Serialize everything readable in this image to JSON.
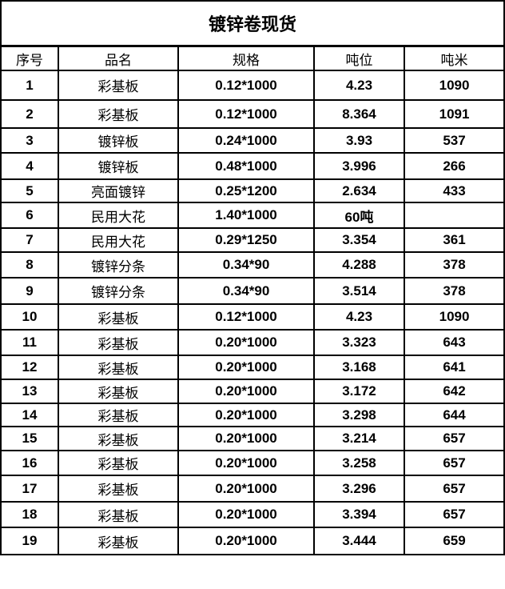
{
  "title": "镀锌卷现货",
  "headers": [
    "序号",
    "品名",
    "规格",
    "吨位",
    "吨米"
  ],
  "rows": [
    [
      "1",
      "彩基板",
      "0.12*1000",
      "4.23",
      "1090"
    ],
    [
      "2",
      "彩基板",
      "0.12*1000",
      "8.364",
      "1091"
    ],
    [
      "3",
      "镀锌板",
      "0.24*1000",
      "3.93",
      "537"
    ],
    [
      "4",
      "镀锌板",
      "0.48*1000",
      "3.996",
      "266"
    ],
    [
      "5",
      "亮面镀锌",
      "0.25*1200",
      "2.634",
      "433"
    ],
    [
      "6",
      "民用大花",
      "1.40*1000",
      "60吨",
      ""
    ],
    [
      "7",
      "民用大花",
      "0.29*1250",
      "3.354",
      "361"
    ],
    [
      "8",
      "镀锌分条",
      "0.34*90",
      "4.288",
      "378"
    ],
    [
      "9",
      "镀锌分条",
      "0.34*90",
      "3.514",
      "378"
    ],
    [
      "10",
      "彩基板",
      "0.12*1000",
      "4.23",
      "1090"
    ],
    [
      "11",
      "彩基板",
      "0.20*1000",
      "3.323",
      "643"
    ],
    [
      "12",
      "彩基板",
      "0.20*1000",
      "3.168",
      "641"
    ],
    [
      "13",
      "彩基板",
      "0.20*1000",
      "3.172",
      "642"
    ],
    [
      "14",
      "彩基板",
      "0.20*1000",
      "3.298",
      "644"
    ],
    [
      "15",
      "彩基板",
      "0.20*1000",
      "3.214",
      "657"
    ],
    [
      "16",
      "彩基板",
      "0.20*1000",
      "3.258",
      "657"
    ],
    [
      "17",
      "彩基板",
      "0.20*1000",
      "3.296",
      "657"
    ],
    [
      "18",
      "彩基板",
      "0.20*1000",
      "3.394",
      "657"
    ],
    [
      "19",
      "彩基板",
      "0.20*1000",
      "3.444",
      "659"
    ]
  ]
}
